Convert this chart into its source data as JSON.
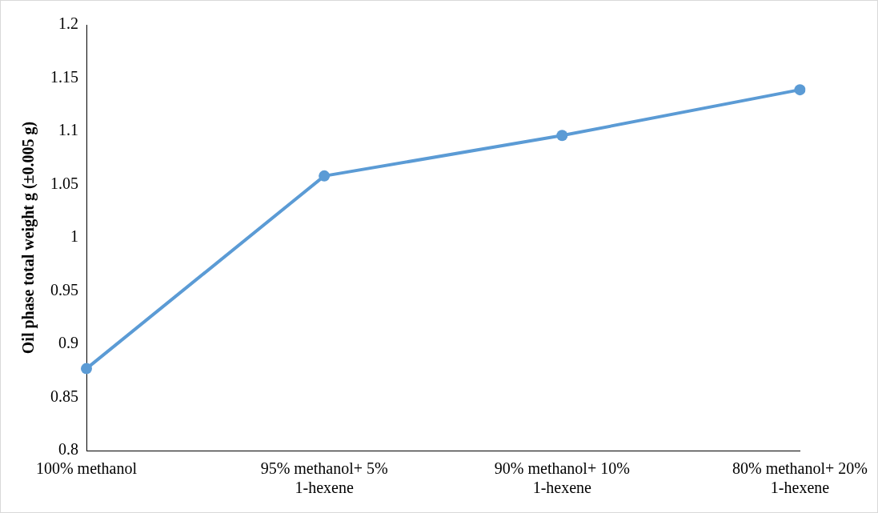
{
  "chart_data": {
    "type": "line",
    "ylabel": "Oil phase total weight g (±0.005 g)",
    "categories": [
      "100% methanol",
      "95% methanol+ 5% 1-hexene",
      "90% methanol+ 10% 1-hexene",
      "80% methanol+ 20% 1-hexene"
    ],
    "series": [
      {
        "color": "#5b9bd5",
        "values": [
          0.877,
          1.058,
          1.096,
          1.139
        ]
      }
    ],
    "ylim": [
      0.8,
      1.2
    ],
    "yticks": [
      0.8,
      0.85,
      0.9,
      0.95,
      1,
      1.05,
      1.1,
      1.15,
      1.2
    ],
    "grid": false,
    "legend": false,
    "marker": "circle",
    "line_style": "solid"
  }
}
